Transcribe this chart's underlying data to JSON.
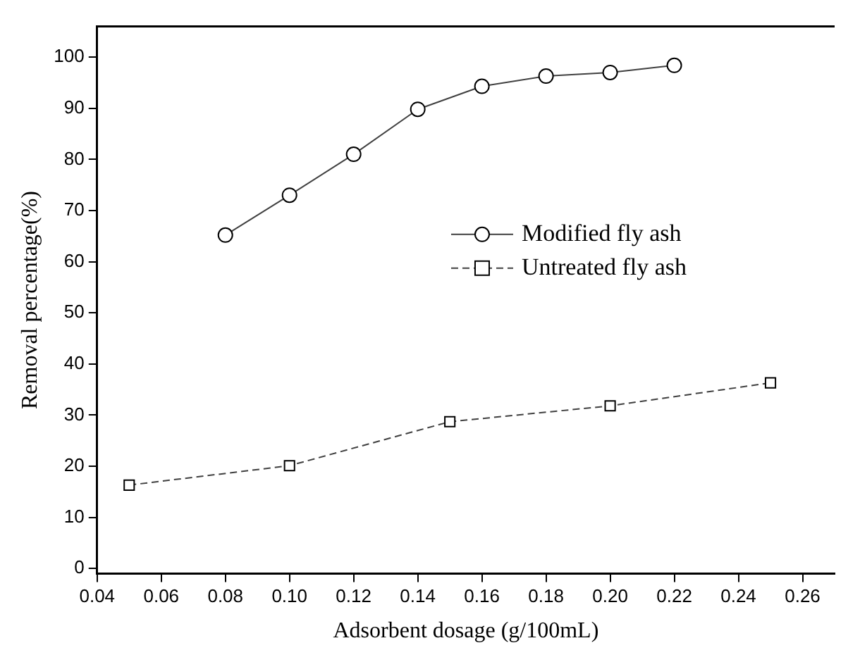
{
  "chart_data": {
    "type": "line",
    "xlabel": "Adsorbent dosage (g/100mL)",
    "ylabel": "Removal percentage(%)",
    "xlim": [
      0.04,
      0.27
    ],
    "xticks": [
      {
        "value": 0.04,
        "label": "0.04"
      },
      {
        "value": 0.06,
        "label": "0.06"
      },
      {
        "value": 0.08,
        "label": "0.08"
      },
      {
        "value": 0.1,
        "label": "0.10"
      },
      {
        "value": 0.12,
        "label": "0.12"
      },
      {
        "value": 0.14,
        "label": "0.14"
      },
      {
        "value": 0.16,
        "label": "0.16"
      },
      {
        "value": 0.18,
        "label": "0.18"
      },
      {
        "value": 0.2,
        "label": "0.20"
      },
      {
        "value": 0.22,
        "label": "0.22"
      },
      {
        "value": 0.24,
        "label": "0.24"
      },
      {
        "value": 0.26,
        "label": "0.26"
      }
    ],
    "ylim": [
      -1,
      106
    ],
    "yticks": [
      0,
      10,
      20,
      30,
      40,
      50,
      60,
      70,
      80,
      90,
      100
    ],
    "grid": false,
    "legend": "right",
    "series": [
      {
        "name": "Modified fly ash",
        "color": "#404040",
        "marker": "circle",
        "line_style": "solid",
        "x": [
          0.08,
          0.1,
          0.12,
          0.14,
          0.16,
          0.18,
          0.2,
          0.22
        ],
        "values": [
          65.2,
          73,
          81,
          89.8,
          94.3,
          96.3,
          97,
          98.4
        ]
      },
      {
        "name": "Untreated fly ash",
        "color": "#404040",
        "marker": "square",
        "line_style": "dashed",
        "x": [
          0.05,
          0.1,
          0.15,
          0.2,
          0.25
        ],
        "values": [
          16.3,
          20.1,
          28.7,
          31.8,
          36.3
        ]
      }
    ]
  }
}
